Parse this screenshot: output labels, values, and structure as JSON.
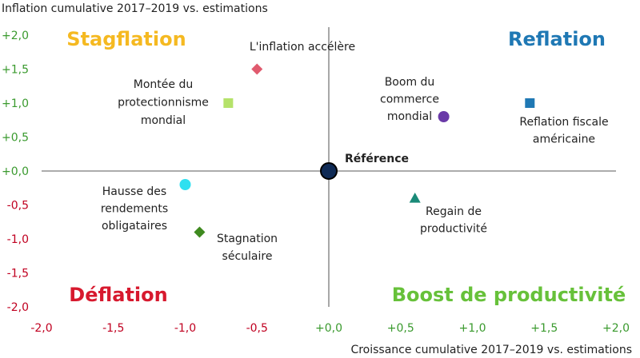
{
  "chart_data": {
    "type": "scatter",
    "ylabel": "Inflation cumulative 2017–2019 vs. estimations",
    "xlabel": "Croissance cumulative 2017–2019 vs. estimations",
    "xlim": [
      -2.0,
      2.0
    ],
    "ylim": [
      -2.0,
      2.0
    ],
    "x_ticks": [
      "-2,0",
      "-1,5",
      "-1,0",
      "-0,5",
      "+0,0",
      "+0,5",
      "+1,0",
      "+1,5",
      "+2,0"
    ],
    "y_ticks": [
      "+2,0",
      "+1,5",
      "+1,0",
      "+0,5",
      "+0,0",
      "-0,5",
      "-1,0",
      "-1,5",
      "-2,0"
    ],
    "tick_color": "#c00020",
    "x_pos_tick_color": "#3a9a2e",
    "y_pos_tick_color": "#3a9a2e",
    "grid": false,
    "quadrants": [
      {
        "label": "Stagflation",
        "color": "#f5b921"
      },
      {
        "label": "Reflation",
        "color": "#1f78b4"
      },
      {
        "label": "Déflation",
        "color": "#d7192e"
      },
      {
        "label": "Boost de productivité",
        "color": "#67c13a"
      }
    ],
    "points": [
      {
        "label": "L'inflation accélère",
        "x": -0.5,
        "y": 1.5,
        "marker": "diamond",
        "color": "#e05a6e"
      },
      {
        "label": "Montée du protectionnisme mondial",
        "x": -0.7,
        "y": 1.0,
        "marker": "square",
        "color": "#b5e26a"
      },
      {
        "label": "Boom du commerce mondial",
        "x": 0.8,
        "y": 0.8,
        "marker": "circle",
        "color": "#6a3aa8"
      },
      {
        "label": "Reflation fiscale américaine",
        "x": 1.4,
        "y": 1.0,
        "marker": "square",
        "color": "#1f78b4"
      },
      {
        "label": "Référence",
        "x": 0.0,
        "y": 0.0,
        "marker": "big-circle",
        "color": "#0f2a55"
      },
      {
        "label": "Hausse des rendements obligataires",
        "x": -1.0,
        "y": -0.2,
        "marker": "circle",
        "color": "#2ee0f0"
      },
      {
        "label": "Regain de productivité",
        "x": 0.6,
        "y": -0.4,
        "marker": "triangle",
        "color": "#1a8a78"
      },
      {
        "label": "Stagnation séculaire",
        "x": -0.9,
        "y": -0.9,
        "marker": "diamond",
        "color": "#3f8a1f"
      }
    ]
  }
}
